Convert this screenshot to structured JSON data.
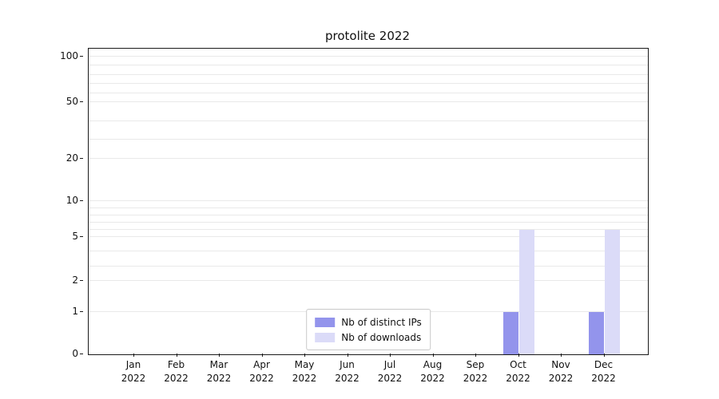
{
  "chart_data": {
    "type": "bar",
    "title": "protolite 2022",
    "categories": [
      {
        "month": "Jan",
        "year": "2022"
      },
      {
        "month": "Feb",
        "year": "2022"
      },
      {
        "month": "Mar",
        "year": "2022"
      },
      {
        "month": "Apr",
        "year": "2022"
      },
      {
        "month": "May",
        "year": "2022"
      },
      {
        "month": "Jun",
        "year": "2022"
      },
      {
        "month": "Jul",
        "year": "2022"
      },
      {
        "month": "Aug",
        "year": "2022"
      },
      {
        "month": "Sep",
        "year": "2022"
      },
      {
        "month": "Oct",
        "year": "2022"
      },
      {
        "month": "Nov",
        "year": "2022"
      },
      {
        "month": "Dec",
        "year": "2022"
      }
    ],
    "series": [
      {
        "name": "Nb of distinct IPs",
        "color": "#9394ec",
        "values": [
          0,
          0,
          0,
          0,
          0,
          0,
          0,
          0,
          0,
          1,
          0,
          1
        ]
      },
      {
        "name": "Nb of downloads",
        "color": "#dbdbf8",
        "values": [
          0,
          0,
          0,
          0,
          0,
          0,
          0,
          0,
          0,
          6,
          0,
          6
        ]
      }
    ],
    "yticks": [
      0,
      1,
      2,
      5,
      10,
      20,
      50,
      100
    ],
    "xlabel": "",
    "ylabel": "",
    "scale": "symlog",
    "grid": "horizontal-minor",
    "legend_position": "bottom-center-inside"
  }
}
